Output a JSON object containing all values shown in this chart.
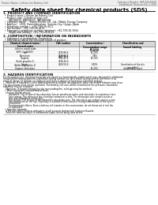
{
  "header_left": "Product Name: Lithium Ion Battery Cell",
  "header_right_line1": "Substance Number: SER-049-00619",
  "header_right_line2": "Established / Revision: Dec.1.2019",
  "title": "Safety data sheet for chemical products (SDS)",
  "section1_title": "1. PRODUCT AND COMPANY IDENTIFICATION",
  "section1_lines": [
    "  • Product name: Lithium Ion Battery Cell",
    "  • Product code: Cylindrical-type cell",
    "       INR18650J, INR18650L, INR18650A",
    "  • Company name:    Sanyo Electric Co., Ltd., Mobile Energy Company",
    "  • Address:   2001, Kamionkuratani, Sumoto-City, Hyogo, Japan",
    "  • Telephone number:   +81-799-26-4111",
    "  • Fax number:  +81-799-26-4121",
    "  • Emergency telephone number (daytime): +81-799-26-3562",
    "       (Night and holiday): +81-799-26-4121"
  ],
  "section2_title": "2. COMPOSITION / INFORMATION ON INGREDIENTS",
  "section2_intro": "  • Substance or preparation: Preparation",
  "section2_sub": "  • Information about the chemical nature of product:",
  "table_headers": [
    "Chemical chemical name /\nSeveral name",
    "CAS number",
    "Concentration /\nConcentration range\n[%,w/w]",
    "Classification and\nhazard labeling"
  ],
  "table_rows": [
    [
      "Lithium cobalt oxide\n(LiMn-Co-Ni2O4)",
      "-",
      "[30-60%]",
      ""
    ],
    [
      "Iron",
      "7439-89-6\n7429-90-5",
      "15-20%",
      ""
    ],
    [
      "Aluminum",
      "7429-90-5",
      "2-8%",
      "-"
    ],
    [
      "Graphite\n(black graphite-1)\n(Artificial graphite-1)",
      "7782-42-5\n7440-44-0",
      "10-20%",
      "-"
    ],
    [
      "Copper",
      "7440-50-8",
      "0-10%",
      "Sensitization of the skin\ngroup No.2"
    ],
    [
      "Organic electrolyte",
      "-",
      "10-20%",
      "Inflammable liquid"
    ]
  ],
  "section3_title": "3. HAZARDS IDENTIFICATION",
  "section3_para1": "For the battery cell, chemical materials are stored in a hermetically sealed metal case, designed to withstand",
  "section3_para2": "temperatures during batteries-operations during normal use. As a result, during normal use, there is no",
  "section3_para3": "physical danger of ignition or explosion and there is danger of hazardous materials leakage.",
  "section3_para4": "    However, if exposed to a fire added mechanical shocks, decomposed, water electrolyte releases may issue.",
  "section3_para5": "The gas release vent can be operated. The battery cell case will be breached at fire-pressure, hazardous",
  "section3_para6": "materials may be released.",
  "section3_para7": "    Moreover, if heated strongly by the surrounding fire, solid gas may be emitted.",
  "section3_bullet1": "  • Most important hazard and effects:",
  "section3_human": "    Human health effects:",
  "section3_human_lines": [
    "        Inhalation: The release of the electrolyte has an anesthesia action and stimulates to respiratory tract.",
    "        Skin contact: The release of the electrolyte stimulates a skin. The electrolyte skin contact causes a",
    "        sore and stimulation on the skin.",
    "        Eye contact: The release of the electrolyte stimulates eyes. The electrolyte eye contact causes a sore",
    "        and stimulation on the eye. Especially, a substance that causes a strong inflammation of the eyes is",
    "        considered.",
    "        Environmental effects: Since a battery cell remains in the environment, do not throw out it into the",
    "        environment."
  ],
  "section3_specific": "  • Specific hazards:",
  "section3_specific_lines": [
    "    If the electrolyte contacts with water, it will generate detrimental hydrogen fluoride.",
    "    Since the lead electrolyte is inflammable liquid, do not bring close to fire."
  ],
  "bg_color": "#ffffff",
  "text_color": "#000000",
  "table_header_bg": "#d8d8d8",
  "border_color": "#666666",
  "line_color": "#aaaaaa"
}
